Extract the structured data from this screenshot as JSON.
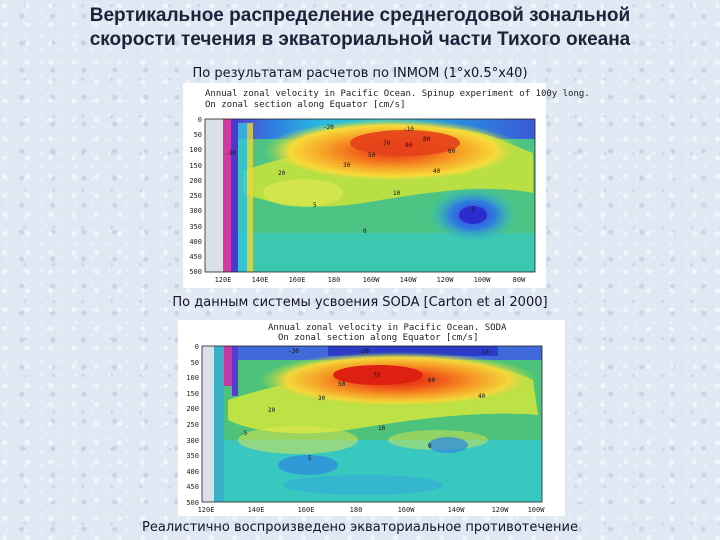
{
  "slide": {
    "title_line1": "Вертикальное распределение среднегодовой зональной",
    "title_line2": "скорости течения в экваториальной части Тихого океана",
    "caption_top": "По результатам расчетов по INMOM (1°x0.5°x40)",
    "caption_middle": "По данным системы усвоения SODA [Carton et al 2000]",
    "caption_bottom": "Реалистично воспроизведено экваториальное противотечение"
  },
  "chart_data": [
    {
      "type": "heatmap",
      "title_line1": "Annual zonal velocity in Pacific Ocean. Spinup experiment of 100y long.",
      "title_line2": "On zonal section along Equator [cm/s]",
      "y_ticks": [
        "0",
        "50",
        "100",
        "150",
        "200",
        "250",
        "300",
        "350",
        "400",
        "450",
        "500"
      ],
      "x_ticks": [
        "120E",
        "140E",
        "160E",
        "180",
        "160W",
        "140W",
        "120W",
        "100W",
        "80W"
      ],
      "contour_labels": [
        "-20",
        "-10",
        "20",
        "30",
        "40",
        "50",
        "60",
        "70",
        "80",
        "90",
        "-5",
        "0",
        "5",
        "10",
        "-30"
      ]
    },
    {
      "type": "heatmap",
      "title_line1": "Annual zonal velocity in Pacific Ocean. SODA",
      "title_line2": "On zonal section along Equator [cm/s]",
      "y_ticks": [
        "0",
        "50",
        "100",
        "150",
        "200",
        "250",
        "300",
        "350",
        "400",
        "450",
        "500"
      ],
      "x_ticks": [
        "120E",
        "140E",
        "160E",
        "180",
        "160W",
        "140W",
        "120W",
        "100W"
      ],
      "contour_labels": [
        "-30",
        "-20",
        "-10",
        "-5",
        "0",
        "5",
        "10",
        "20",
        "30",
        "40",
        "50",
        "60",
        "70"
      ]
    }
  ]
}
